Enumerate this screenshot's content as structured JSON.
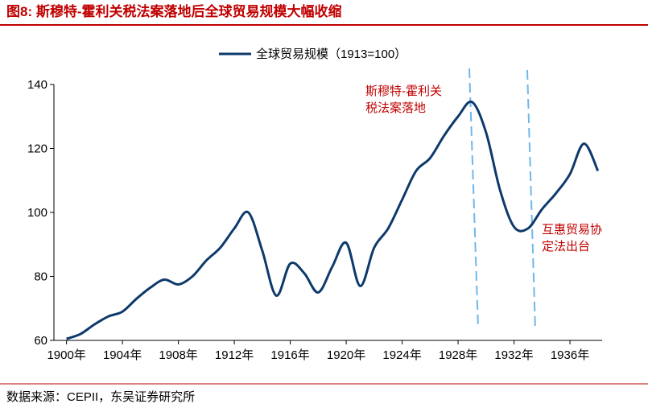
{
  "chart_data": {
    "type": "line",
    "title": "图8:  斯穆特-霍利关税法案落地后全球贸易规模大幅收缩",
    "x": [
      1900,
      1901,
      1902,
      1903,
      1904,
      1905,
      1906,
      1907,
      1908,
      1909,
      1910,
      1911,
      1912,
      1913,
      1914,
      1915,
      1916,
      1917,
      1918,
      1919,
      1920,
      1921,
      1922,
      1923,
      1924,
      1925,
      1926,
      1927,
      1928,
      1929,
      1930,
      1931,
      1932,
      1933,
      1934,
      1935,
      1936,
      1937,
      1938
    ],
    "series": [
      {
        "name": "全球贸易规模（1913=100）",
        "color": "#0e3a6b",
        "values": [
          60.5,
          62,
          65,
          67.5,
          69,
          73,
          76.5,
          79,
          77.5,
          80,
          85,
          89,
          95,
          100,
          88,
          74,
          84,
          81,
          75,
          83,
          90.5,
          77,
          89,
          95,
          104,
          113,
          117,
          124,
          130,
          134.5,
          125,
          107,
          95.5,
          95,
          101,
          106,
          112,
          121.5,
          113
        ]
      }
    ],
    "xlim": [
      1899.1,
      1938.3
    ],
    "xticks": [
      {
        "value": 1900,
        "label": "1900年"
      },
      {
        "value": 1904,
        "label": "1904年"
      },
      {
        "value": 1908,
        "label": "1908年"
      },
      {
        "value": 1912,
        "label": "1912年"
      },
      {
        "value": 1916,
        "label": "1916年"
      },
      {
        "value": 1920,
        "label": "1920年"
      },
      {
        "value": 1924,
        "label": "1924年"
      },
      {
        "value": 1928,
        "label": "1928年"
      },
      {
        "value": 1932,
        "label": "1932年"
      },
      {
        "value": 1936,
        "label": "1936年"
      }
    ],
    "ylim": [
      60,
      140
    ],
    "yticks": [
      60,
      80,
      100,
      120,
      140
    ],
    "annotations": [
      [
        "斯穆特-霍利关",
        "税法案落地"
      ],
      [
        "互惠贸易协",
        "定法出台"
      ]
    ],
    "source": "数据来源：CEPII，东吴证券研究所"
  }
}
